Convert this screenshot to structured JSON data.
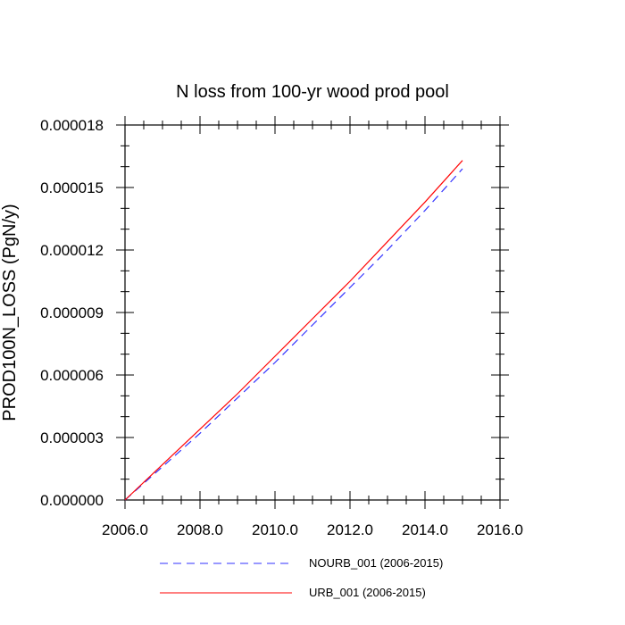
{
  "chart_data": {
    "type": "line",
    "title": "N loss from 100-yr wood prod pool",
    "xlabel": "",
    "ylabel": "PROD100N_LOSS  (PgN/y)",
    "xlim": [
      2006,
      2016
    ],
    "ylim": [
      0,
      1.8e-05
    ],
    "xticks": [
      2006,
      2008,
      2010,
      2012,
      2014,
      2016
    ],
    "xtick_labels": [
      "2006.0",
      "2008.0",
      "2010.0",
      "2012.0",
      "2014.0",
      "2016.0"
    ],
    "yticks": [
      0,
      3e-06,
      6e-06,
      9e-06,
      1.2e-05,
      1.5e-05,
      1.8e-05
    ],
    "ytick_labels": [
      "0.000000",
      "0.000003",
      "0.000006",
      "0.000009",
      "0.000012",
      "0.000015",
      "0.000018"
    ],
    "grid": false,
    "legend_position": "bottom",
    "series": [
      {
        "name": "NOURB_001 (2006-2015)",
        "color": "#3232ff",
        "dash": "dashed",
        "x": [
          2006,
          2007,
          2008,
          2009,
          2010,
          2011,
          2012,
          2013,
          2014,
          2015
        ],
        "y": [
          0.0,
          1.6e-06,
          3.2e-06,
          4.9e-06,
          6.6e-06,
          8.4e-06,
          1.02e-05,
          1.2e-05,
          1.39e-05,
          1.59e-05
        ]
      },
      {
        "name": "URB_001 (2006-2015)",
        "color": "#ff0000",
        "dash": "solid",
        "x": [
          2006,
          2007,
          2008,
          2009,
          2010,
          2011,
          2012,
          2013,
          2014,
          2015
        ],
        "y": [
          0.0,
          1.7e-06,
          3.4e-06,
          5.1e-06,
          6.9e-06,
          8.7e-06,
          1.05e-05,
          1.24e-05,
          1.43e-05,
          1.63e-05
        ]
      }
    ]
  }
}
